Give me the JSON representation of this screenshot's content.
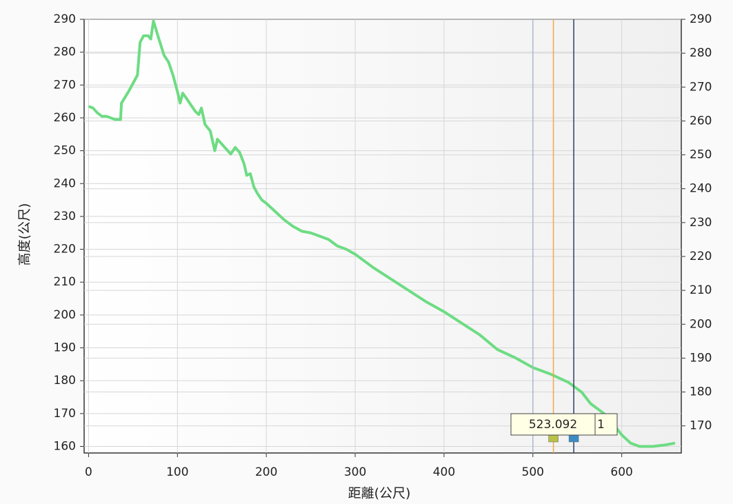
{
  "chart_data": {
    "type": "line",
    "x_label": "距離(公尺)",
    "y_label": "高度(公尺)",
    "xlim": [
      -5,
      667
    ],
    "xticks": [
      0,
      100,
      200,
      300,
      400,
      500,
      600
    ],
    "ylim": [
      158,
      290
    ],
    "yticks": [
      160,
      170,
      180,
      190,
      200,
      210,
      220,
      230,
      240,
      250,
      260,
      270,
      280,
      290
    ],
    "y2lim": [
      162,
      290
    ],
    "y2ticks": [
      170,
      180,
      190,
      200,
      210,
      220,
      230,
      240,
      250,
      260,
      270,
      280,
      290
    ],
    "grid": true,
    "series": [
      {
        "color": "#6ddc83",
        "x": [
          0,
          5,
          10,
          15,
          20,
          25,
          30,
          36,
          37,
          45,
          55,
          58,
          62,
          67,
          70,
          73,
          78,
          85,
          90,
          95,
          100,
          103,
          106,
          110,
          115,
          120,
          124,
          127,
          131,
          137,
          142,
          145,
          150,
          155,
          160,
          165,
          170,
          175,
          178,
          182,
          186,
          190,
          195,
          200,
          210,
          220,
          230,
          240,
          250,
          260,
          270,
          280,
          290,
          300,
          320,
          340,
          360,
          380,
          400,
          420,
          440,
          460,
          480,
          500,
          520,
          540,
          555,
          565,
          580,
          590,
          600,
          610,
          620,
          635,
          650,
          660
        ],
        "values": [
          263.5,
          263,
          261.5,
          260.5,
          260.5,
          260,
          259.5,
          259.5,
          264.5,
          268,
          273,
          283,
          285,
          285,
          284,
          289.5,
          285,
          279,
          277,
          273,
          268,
          264.5,
          267.5,
          266,
          264,
          262,
          261,
          263,
          258,
          256,
          250,
          253.5,
          252,
          250.5,
          249,
          251,
          249.5,
          246,
          242.5,
          243,
          239,
          237,
          235,
          234,
          231.5,
          229,
          227,
          225.5,
          225,
          224,
          223,
          221,
          220,
          218.5,
          214.5,
          211,
          207.5,
          204,
          201,
          197.5,
          194,
          189.5,
          187,
          184,
          182,
          179.5,
          176.5,
          173,
          170,
          167,
          163.5,
          161,
          160,
          160,
          160.5,
          161
        ]
      }
    ],
    "cursors": [
      {
        "x": 500,
        "color": "#a9b8d0"
      },
      {
        "x": 523.092,
        "color": "#f0a848",
        "marker_color": "#b8c048"
      },
      {
        "x": 546,
        "color": "#2c3e66",
        "marker_color": "#3a8cc4",
        "label": "1"
      }
    ]
  }
}
